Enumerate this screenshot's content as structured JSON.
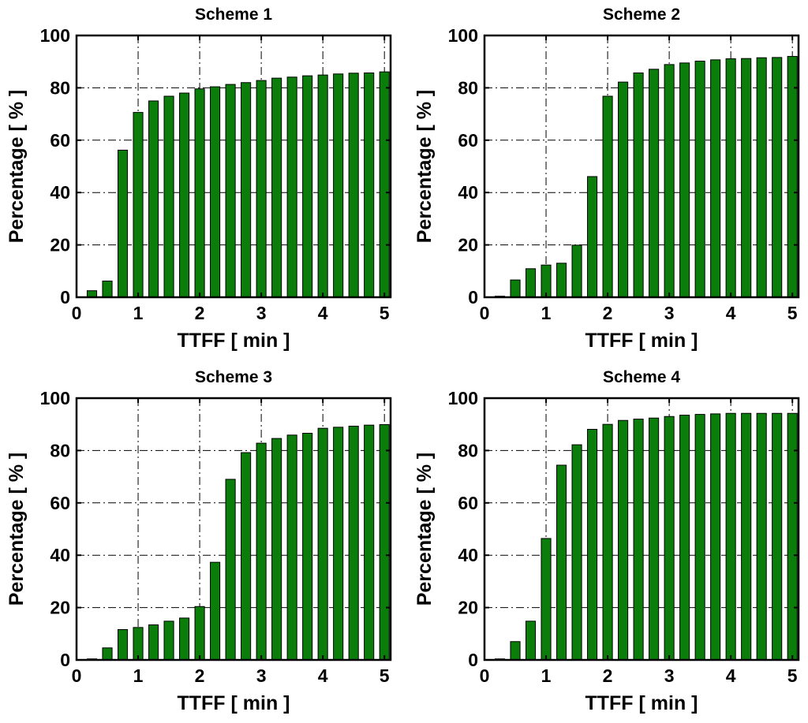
{
  "chart_data": [
    {
      "type": "bar",
      "title": "Scheme 1",
      "xlabel": "TTFF [ min ]",
      "ylabel": "Percentage [ % ]",
      "xlim": [
        0,
        5.1
      ],
      "ylim": [
        0,
        100
      ],
      "xticks": [
        0,
        1,
        2,
        3,
        4,
        5
      ],
      "yticks": [
        0,
        20,
        40,
        60,
        80,
        100
      ],
      "grid": true,
      "x": [
        0.25,
        0.5,
        0.75,
        1.0,
        1.25,
        1.5,
        1.75,
        2.0,
        2.25,
        2.5,
        2.75,
        3.0,
        3.25,
        3.5,
        3.75,
        4.0,
        4.25,
        4.5,
        4.75,
        5.0
      ],
      "values": [
        2.5,
        6.2,
        56.2,
        70.6,
        75.0,
        76.8,
        78.0,
        79.6,
        80.4,
        81.3,
        82.0,
        82.8,
        83.7,
        84.1,
        84.6,
        84.9,
        85.3,
        85.6,
        85.7,
        86.1
      ]
    },
    {
      "type": "bar",
      "title": "Scheme 2",
      "xlabel": "TTFF [ min ]",
      "ylabel": "Percentage [ % ]",
      "xlim": [
        0,
        5.1
      ],
      "ylim": [
        0,
        100
      ],
      "xticks": [
        0,
        1,
        2,
        3,
        4,
        5
      ],
      "yticks": [
        0,
        20,
        40,
        60,
        80,
        100
      ],
      "grid": true,
      "x": [
        0.25,
        0.5,
        0.75,
        1.0,
        1.25,
        1.5,
        1.75,
        2.0,
        2.25,
        2.5,
        2.75,
        3.0,
        3.25,
        3.5,
        3.75,
        4.0,
        4.25,
        4.5,
        4.75,
        5.0
      ],
      "values": [
        0.4,
        6.6,
        10.9,
        12.3,
        13.0,
        19.9,
        46.1,
        76.8,
        82.2,
        85.7,
        87.1,
        88.9,
        89.5,
        90.2,
        90.7,
        91.1,
        91.2,
        91.5,
        91.6,
        92.0
      ]
    },
    {
      "type": "bar",
      "title": "Scheme 3",
      "xlabel": "TTFF [ min ]",
      "ylabel": "Percentage [ % ]",
      "xlim": [
        0,
        5.1
      ],
      "ylim": [
        0,
        100
      ],
      "xticks": [
        0,
        1,
        2,
        3,
        4,
        5
      ],
      "yticks": [
        0,
        20,
        40,
        60,
        80,
        100
      ],
      "grid": true,
      "x": [
        0.25,
        0.5,
        0.75,
        1.0,
        1.25,
        1.5,
        1.75,
        2.0,
        2.25,
        2.5,
        2.75,
        3.0,
        3.25,
        3.5,
        3.75,
        4.0,
        4.25,
        4.5,
        4.75,
        5.0
      ],
      "values": [
        0.4,
        4.6,
        11.6,
        12.4,
        13.4,
        14.8,
        16.0,
        20.4,
        37.3,
        69.0,
        79.2,
        82.8,
        84.6,
        85.9,
        86.6,
        88.5,
        88.9,
        89.3,
        89.7,
        89.9
      ]
    },
    {
      "type": "bar",
      "title": "Scheme 4",
      "xlabel": "TTFF [ min ]",
      "ylabel": "Percentage [ % ]",
      "xlim": [
        0,
        5.1
      ],
      "ylim": [
        0,
        100
      ],
      "xticks": [
        0,
        1,
        2,
        3,
        4,
        5
      ],
      "yticks": [
        0,
        20,
        40,
        60,
        80,
        100
      ],
      "grid": true,
      "x": [
        0.25,
        0.5,
        0.75,
        1.0,
        1.25,
        1.5,
        1.75,
        2.0,
        2.25,
        2.5,
        2.75,
        3.0,
        3.25,
        3.5,
        3.75,
        4.0,
        4.25,
        4.5,
        4.75,
        5.0
      ],
      "values": [
        0.4,
        7.0,
        14.8,
        46.4,
        74.4,
        82.2,
        88.1,
        90.0,
        91.5,
        92.0,
        92.4,
        93.0,
        93.5,
        93.8,
        94.0,
        94.2,
        94.2,
        94.2,
        94.2,
        94.2
      ]
    }
  ],
  "colors": {
    "bar": "#0b7d0b",
    "frame": "#000000",
    "background": "#ffffff"
  }
}
